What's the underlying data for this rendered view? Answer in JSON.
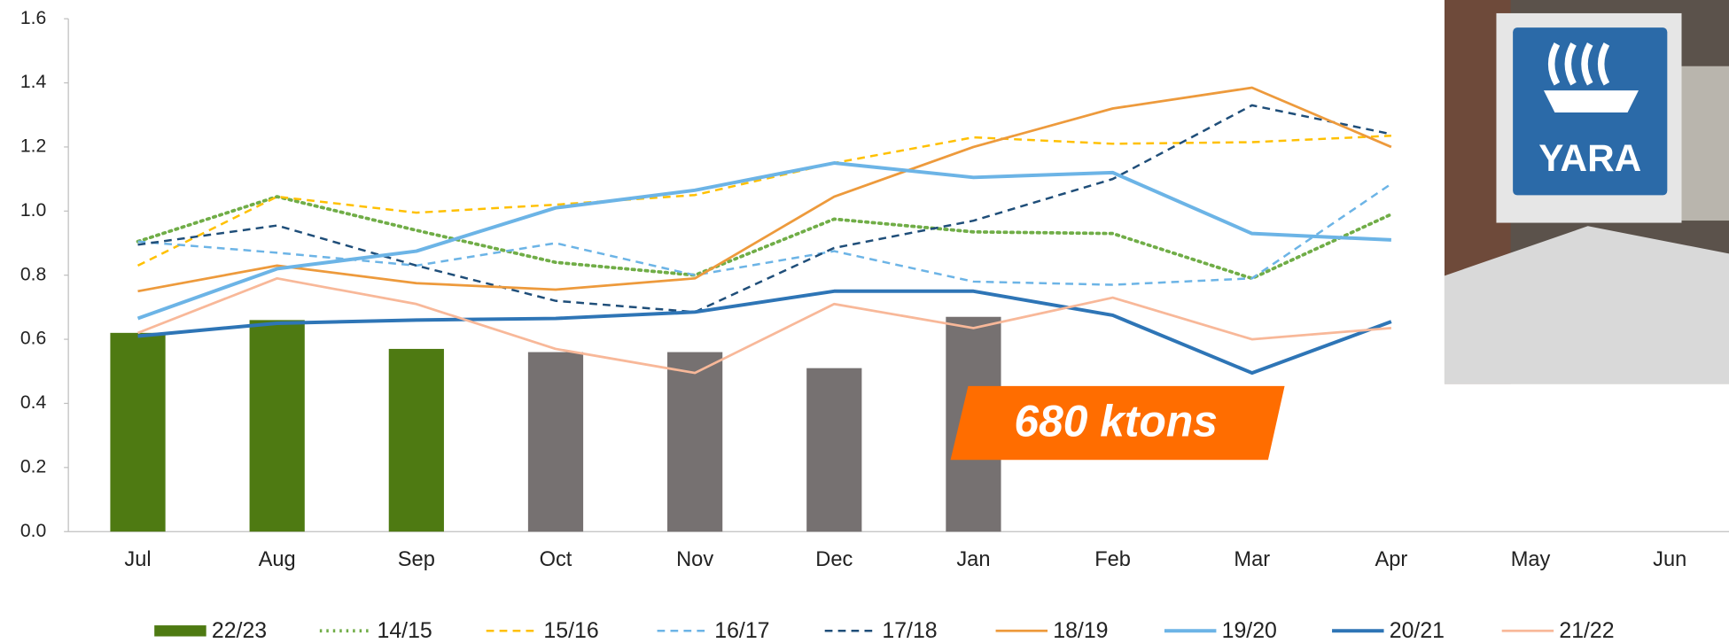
{
  "chart_data": {
    "type": "line",
    "categories": [
      "Jul",
      "Aug",
      "Sep",
      "Oct",
      "Nov",
      "Dec",
      "Jan",
      "Feb",
      "Mar",
      "Apr",
      "May",
      "Jun"
    ],
    "ylim": [
      0,
      1.6
    ],
    "yticks": [
      {
        "value": 0,
        "label": "0.0"
      },
      0.2,
      0.4,
      0.6,
      0.8,
      {
        "value": 1,
        "label": "1.0"
      },
      1.2,
      1.4,
      1.6
    ],
    "series": [
      {
        "name": "22/23",
        "type": "bar",
        "color": "#4e7a12",
        "colors": [
          "#4e7a12",
          "#4e7a12",
          "#4e7a12",
          "#767171",
          "#767171",
          "#767171",
          "#767171",
          null,
          null,
          null,
          null,
          null
        ],
        "values": [
          0.62,
          0.66,
          0.57,
          0.56,
          0.56,
          0.51,
          0.67,
          null,
          null,
          null,
          null,
          null
        ]
      },
      {
        "name": "14/15",
        "color": "#70ad47",
        "style": "dotted",
        "values": [
          0.905,
          1.045,
          0.94,
          0.84,
          0.8,
          0.975,
          0.935,
          0.93,
          0.79,
          0.99,
          null,
          null
        ]
      },
      {
        "name": "15/16",
        "color": "#ffc000",
        "style": "dashed",
        "values": [
          0.83,
          1.045,
          0.995,
          1.02,
          1.05,
          1.15,
          1.23,
          1.21,
          1.215,
          1.235,
          null,
          null
        ]
      },
      {
        "name": "16/17",
        "color": "#6cb4e6",
        "style": "dashed",
        "values": [
          0.905,
          0.87,
          0.83,
          0.9,
          0.8,
          0.875,
          0.78,
          0.77,
          0.79,
          1.085,
          null,
          null
        ]
      },
      {
        "name": "17/18",
        "color": "#1f4e79",
        "style": "dashed",
        "values": [
          0.895,
          0.955,
          0.83,
          0.72,
          0.685,
          0.885,
          0.97,
          1.1,
          1.33,
          1.24,
          null,
          null
        ]
      },
      {
        "name": "18/19",
        "color": "#ed9a3c",
        "style": "solid",
        "values": [
          0.75,
          0.83,
          0.775,
          0.755,
          0.79,
          1.045,
          1.2,
          1.32,
          1.385,
          1.2,
          null,
          null
        ]
      },
      {
        "name": "19/20",
        "color": "#6cb4e6",
        "style": "thick",
        "values": [
          0.665,
          0.82,
          0.875,
          1.01,
          1.065,
          1.15,
          1.105,
          1.12,
          0.93,
          0.91,
          null,
          null
        ]
      },
      {
        "name": "20/21",
        "color": "#2e75b6",
        "style": "thick",
        "values": [
          0.61,
          0.65,
          0.66,
          0.665,
          0.685,
          0.75,
          0.75,
          0.675,
          0.495,
          0.655,
          null,
          null
        ]
      },
      {
        "name": "21/22",
        "color": "#f8b899",
        "style": "solid",
        "values": [
          0.62,
          0.79,
          0.71,
          0.57,
          0.495,
          0.71,
          0.635,
          0.73,
          0.6,
          0.635,
          null,
          null
        ]
      }
    ],
    "annotation": "680 ktons"
  },
  "logo": {
    "text": "YARA"
  }
}
